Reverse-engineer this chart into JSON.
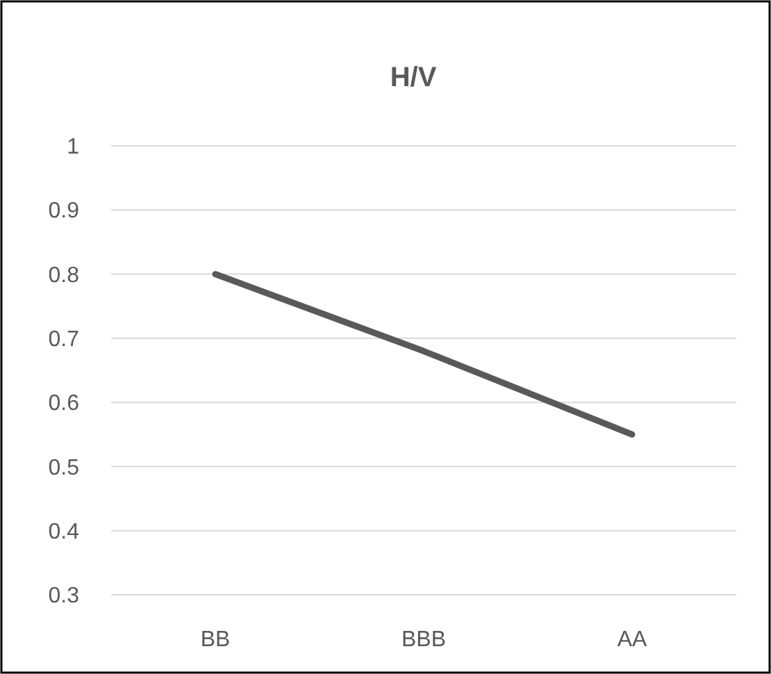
{
  "chart_data": {
    "type": "line",
    "title": "H/V",
    "categories": [
      "BB",
      "BBB",
      "AA"
    ],
    "series": [
      {
        "color": "#595959",
        "values": [
          0.8,
          0.68,
          0.55
        ]
      }
    ],
    "ylim": [
      0.3,
      1
    ],
    "yticks": [
      0.3,
      0.4,
      0.5,
      0.6,
      0.7,
      0.8,
      0.9,
      1
    ],
    "grid": "y",
    "marker": "none",
    "line_style": "solid"
  }
}
